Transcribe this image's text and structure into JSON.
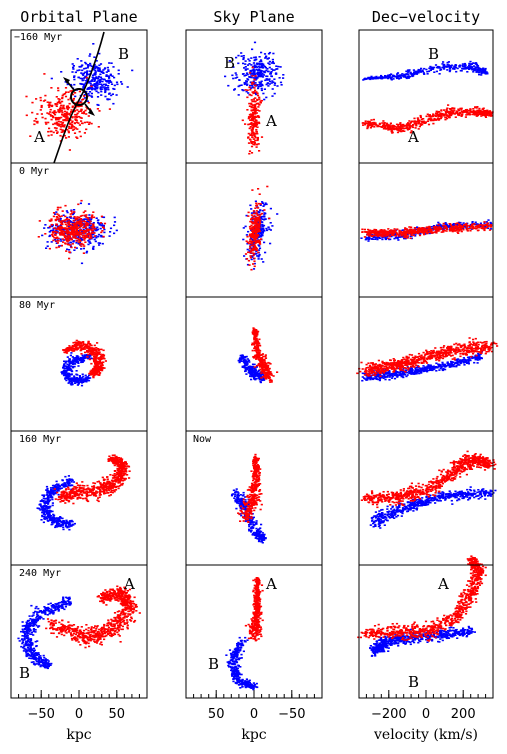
{
  "figure": {
    "columns": [
      {
        "key": "orbital",
        "title": "Orbital Plane"
      },
      {
        "key": "sky",
        "title": "Sky Plane"
      },
      {
        "key": "dv",
        "title": "Dec−velocity"
      }
    ],
    "rows": [
      {
        "time_label": "−160 Myr",
        "time_col": "orbital"
      },
      {
        "time_label": "0 Myr",
        "time_col": "orbital"
      },
      {
        "time_label": "80 Myr",
        "time_col": "orbital"
      },
      {
        "time_label": "160 Myr",
        "time_col": "orbital"
      },
      {
        "time_label": "240 Myr",
        "time_col": "orbital"
      }
    ],
    "now_label": "Now",
    "galaxy_labels": {
      "a": "A",
      "b": "B"
    },
    "x_axes": [
      {
        "label": "kpc",
        "ticks": [
          {
            "v": -50,
            "t": "−50"
          },
          {
            "v": 0,
            "t": "0"
          },
          {
            "v": 50,
            "t": "50"
          }
        ],
        "lim": [
          -90,
          90
        ]
      },
      {
        "label": "kpc",
        "ticks": [
          {
            "v": 50,
            "t": "50"
          },
          {
            "v": 0,
            "t": "0"
          },
          {
            "v": -50,
            "t": "−50"
          }
        ],
        "lim": [
          90,
          -90
        ]
      },
      {
        "label": "velocity (km/s)",
        "ticks": [
          {
            "v": -200,
            "t": "−200"
          },
          {
            "v": 0,
            "t": "0"
          },
          {
            "v": 200,
            "t": "200"
          }
        ],
        "lim": [
          -360,
          360
        ]
      }
    ],
    "colors": {
      "galaxy_a": "#ff0000",
      "galaxy_b": "#0000ff",
      "frame": "#000000",
      "orbit": "#000000"
    }
  }
}
